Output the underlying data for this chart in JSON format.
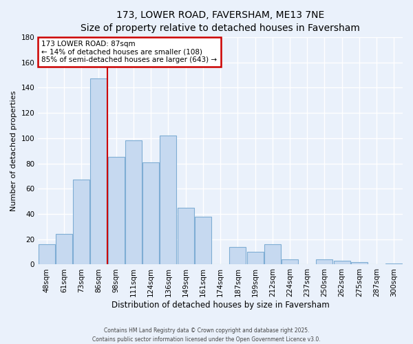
{
  "title": "173, LOWER ROAD, FAVERSHAM, ME13 7NE",
  "subtitle": "Size of property relative to detached houses in Faversham",
  "xlabel": "Distribution of detached houses by size in Faversham",
  "ylabel": "Number of detached properties",
  "bar_labels": [
    "48sqm",
    "61sqm",
    "73sqm",
    "86sqm",
    "98sqm",
    "111sqm",
    "124sqm",
    "136sqm",
    "149sqm",
    "161sqm",
    "174sqm",
    "187sqm",
    "199sqm",
    "212sqm",
    "224sqm",
    "237sqm",
    "250sqm",
    "262sqm",
    "275sqm",
    "287sqm",
    "300sqm"
  ],
  "bar_values": [
    16,
    24,
    67,
    147,
    85,
    98,
    81,
    102,
    45,
    38,
    0,
    14,
    10,
    16,
    4,
    0,
    4,
    3,
    2,
    0,
    1
  ],
  "bar_color": "#c6d9f0",
  "bar_edgecolor": "#7eadd4",
  "vline_index": 3,
  "vline_color": "#cc0000",
  "annotation_title": "173 LOWER ROAD: 87sqm",
  "annotation_line1": "← 14% of detached houses are smaller (108)",
  "annotation_line2": "85% of semi-detached houses are larger (643) →",
  "annotation_box_color": "#cc0000",
  "annotation_bg": "#ffffff",
  "ylim": [
    0,
    180
  ],
  "yticks": [
    0,
    20,
    40,
    60,
    80,
    100,
    120,
    140,
    160,
    180
  ],
  "footer1": "Contains HM Land Registry data © Crown copyright and database right 2025.",
  "footer2": "Contains public sector information licensed under the Open Government Licence v3.0.",
  "bg_color": "#eaf1fb",
  "grid_color": "#ffffff",
  "title_fontsize": 10,
  "subtitle_fontsize": 9,
  "xlabel_fontsize": 8.5,
  "ylabel_fontsize": 8,
  "tick_fontsize": 7.5,
  "footer_fontsize": 5.5,
  "ann_fontsize": 7.5
}
